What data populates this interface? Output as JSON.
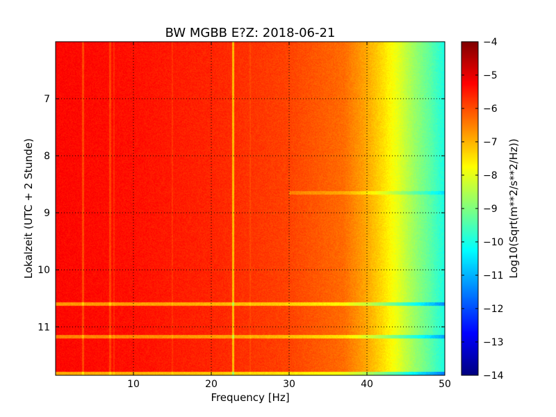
{
  "chart_data": {
    "type": "heatmap",
    "title": "BW MGBB E?Z: 2018-06-21",
    "xlabel": "Frequency [Hz]",
    "ylabel": "Lokalzeit (UTC + 2 Stunde)",
    "colorbar_label": "Log10(Sqrt(m**2/s**2/Hz))",
    "colormap": "jet",
    "xlim": [
      0,
      50
    ],
    "ylim": [
      6.0,
      11.85
    ],
    "y_inverted": true,
    "clim": [
      -14,
      -4
    ],
    "grid": true,
    "x_ticks": [
      10,
      20,
      30,
      40,
      50
    ],
    "x_tick_labels": [
      "10",
      "20",
      "30",
      "40",
      "50"
    ],
    "y_ticks": [
      7,
      8,
      9,
      10,
      11
    ],
    "y_tick_labels": [
      "7",
      "8",
      "9",
      "10",
      "11"
    ],
    "colorbar_ticks": [
      -4,
      -5,
      -6,
      -7,
      -8,
      -9,
      -10,
      -11,
      -12,
      -13,
      -14
    ],
    "colorbar_tick_labels": [
      "−4",
      "−5",
      "−6",
      "−7",
      "−8",
      "−9",
      "−10",
      "−11",
      "−12",
      "−13",
      "−14"
    ],
    "spectrum_profile": [
      {
        "freq": 0,
        "value": -5.3
      },
      {
        "freq": 10,
        "value": -5.4
      },
      {
        "freq": 20,
        "value": -5.6
      },
      {
        "freq": 30,
        "value": -5.9
      },
      {
        "freq": 37,
        "value": -6.3
      },
      {
        "freq": 40,
        "value": -6.9
      },
      {
        "freq": 42,
        "value": -7.4
      },
      {
        "freq": 44,
        "value": -8.0
      },
      {
        "freq": 46,
        "value": -8.7
      },
      {
        "freq": 48,
        "value": -9.3
      },
      {
        "freq": 50,
        "value": -10.0
      }
    ],
    "vertical_lines": [
      {
        "freq": 3.5,
        "delta": -0.6
      },
      {
        "freq": 7.0,
        "delta": -0.5
      },
      {
        "freq": 7.5,
        "delta": -0.3
      },
      {
        "freq": 15.0,
        "delta": -0.25
      },
      {
        "freq": 22.8,
        "delta": -1.4
      },
      {
        "freq": 25.0,
        "delta": -0.2
      }
    ],
    "horizontal_bands": [
      {
        "time": 8.65,
        "delta": -0.6,
        "fmin": 30,
        "fmax": 50
      },
      {
        "time": 10.6,
        "delta": -1.4,
        "fmin": 0,
        "fmax": 50
      },
      {
        "time": 11.17,
        "delta": -1.2,
        "fmin": 0,
        "fmax": 50
      },
      {
        "time": 11.82,
        "delta": -1.6,
        "fmin": 0,
        "fmax": 50
      }
    ]
  }
}
